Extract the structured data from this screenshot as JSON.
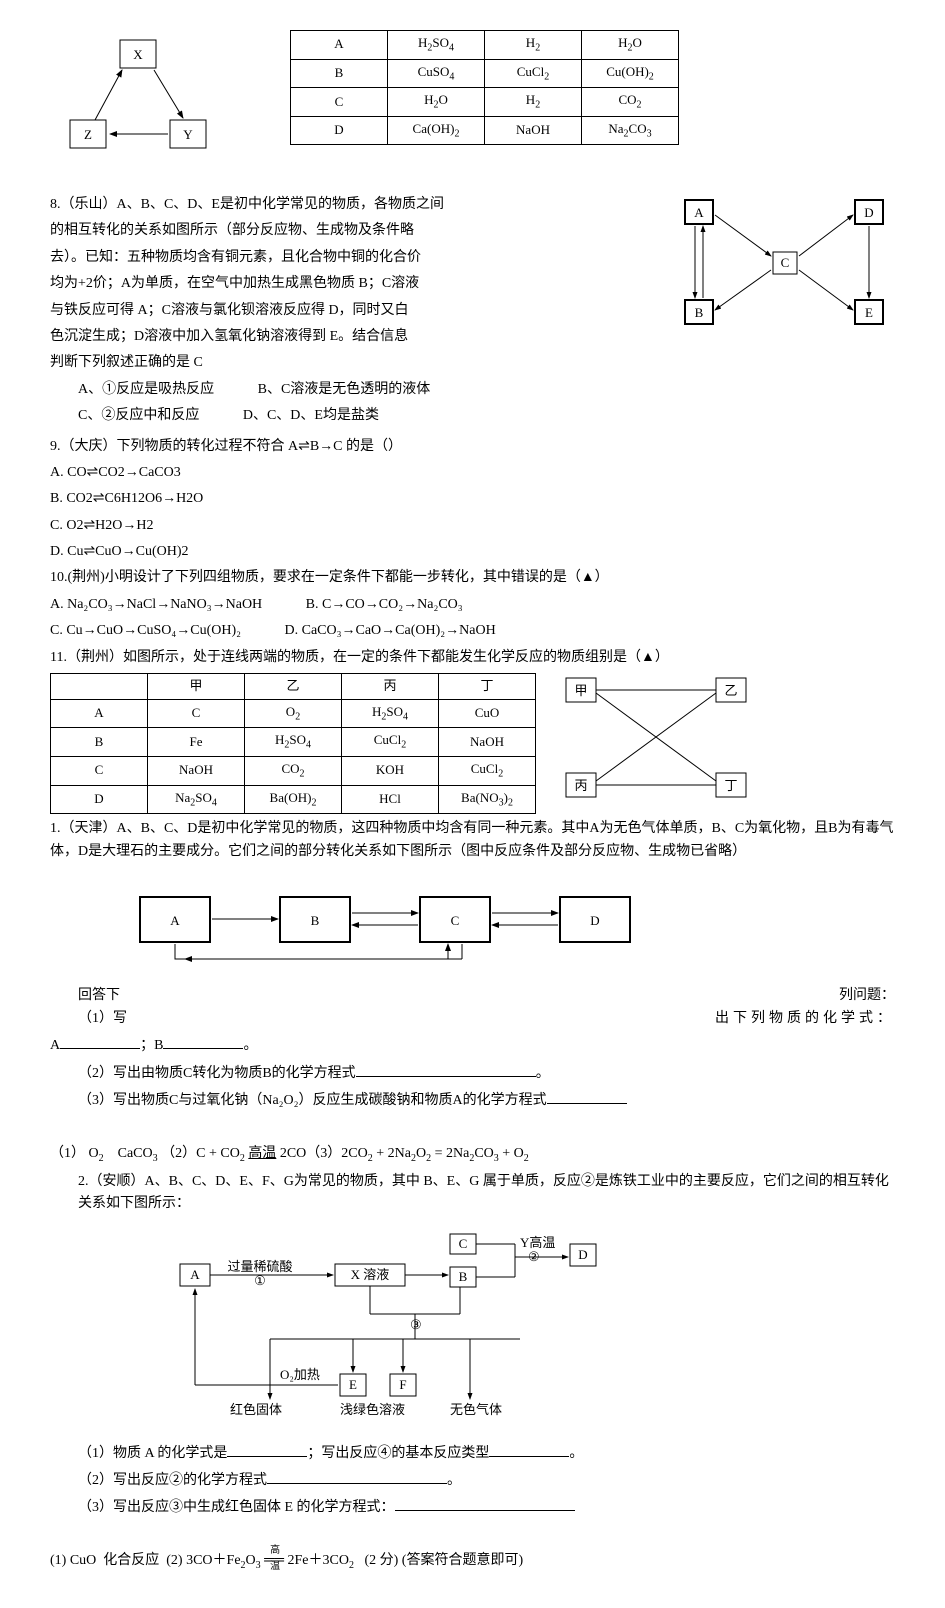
{
  "xyz": {
    "X": "X",
    "Y": "Y",
    "Z": "Z"
  },
  "table1": {
    "rows": [
      [
        "A",
        "H₂SO₄",
        "H₂",
        "H₂O"
      ],
      [
        "B",
        "CuSO₄",
        "CuCl₂",
        "Cu(OH)₂"
      ],
      [
        "C",
        "H₂O",
        "H₂",
        "CO₂"
      ],
      [
        "D",
        "Ca(OH)₂",
        "NaOH",
        "Na₂CO₃"
      ]
    ]
  },
  "q8": {
    "line1": "8.（乐山）A、B、C、D、E是初中化学常见的物质，各物质之间",
    "line2": "的相互转化的关系如图所示（部分反应物、生成物及条件略",
    "line3": "去）。已知：五种物质均含有铜元素，且化合物中铜的化合价",
    "line4": "均为+2价；A为单质，在空气中加热生成黑色物质 B；C溶液",
    "line5": "与铁反应可得 A；C溶液与氯化钡溶液反应得 D，同时又白",
    "line6": "色沉淀生成；D溶液中加入氢氧化钠溶液得到 E。结合信息",
    "line7": "判断下列叙述正确的是 C",
    "optA": "A、①反应是吸热反应",
    "optB": "B、C溶液是无色透明的液体",
    "optC": "C、②反应中和反应",
    "optD": "D、C、D、E均是盐类",
    "labels": {
      "A": "A",
      "B": "B",
      "C": "C",
      "D": "D",
      "E": "E"
    }
  },
  "q9": {
    "stem": "9.（大庆）下列物质的转化过程不符合 A⇌B→C 的是（）",
    "A": "A.  CO⇌CO2→CaCO3",
    "B": "B.  CO2⇌C6H12O6→H2O",
    "C": "C.  O2⇌H2O→H2",
    "D": "D.  Cu⇌CuO→Cu(OH)2"
  },
  "q10": {
    "stem": "10.(荆州)小明设计了下列四组物质，要求在一定条件下都能一步转化，其中错误的是（▲）",
    "A": "A.  Na₂CO₃→NaCl→NaNO₃→NaOH",
    "B": "B.  C→CO→CO₂→Na₂CO₃",
    "C": "C.  Cu→CuO→CuSO₄→Cu(OH)₂",
    "D": "D.  CaCO₃→CaO→Ca(OH)₂→NaOH"
  },
  "q11": {
    "stem": "11.（荆州）如图所示，处于连线两端的物质，在一定的条件下都能发生化学反应的物质组别是（▲）",
    "headers": [
      "",
      "甲",
      "乙",
      "丙",
      "丁"
    ],
    "rows": [
      [
        "A",
        "C",
        "O₂",
        "H₂SO₄",
        "CuO"
      ],
      [
        "B",
        "Fe",
        "H₂SO₄",
        "CuCl₂",
        "NaOH"
      ],
      [
        "C",
        "NaOH",
        "CO₂",
        "KOH",
        "CuCl₂"
      ],
      [
        "D",
        "Na₂SO₄",
        "Ba(OH)₂",
        "HCl",
        "Ba(NO₃)₂"
      ]
    ],
    "labels": {
      "甲": "甲",
      "乙": "乙",
      "丙": "丙",
      "丁": "丁"
    }
  },
  "q1b": {
    "stem": "1.（天津）A、B、C、D是初中化学常见的物质，这四种物质中均含有同一种元素。其中A为无色气体单质，B、C为氧化物，且B为有毒气体，D是大理石的主要成分。它们之间的部分转化关系如下图所示（图中反应条件及部分反应物、生成物已省略）",
    "sub1a": "回答下",
    "sub1b": "列问题：",
    "sub2a": "（1）写",
    "sub2b": "出下列物质的化学式：",
    "line_ab": "A_____________；B___________。",
    "sub3": "（2）写出由物质C转化为物质B的化学方程式",
    "sub4": "（3）写出物质C与过氧化钠（Na₂O₂）反应生成碳酸钠和物质A的化学方程式",
    "ans": "（1） O₂    CaCO₃ （2）C + CO₂ 高温 2CO（3）2CO₂ + 2Na₂O₂ = 2Na₂CO₃ + O₂",
    "labels": {
      "A": "A",
      "B": "B",
      "C": "C",
      "D": "D"
    }
  },
  "q2b": {
    "stem": "2.（安顺）A、B、C、D、E、F、G为常见的物质，其中 B、E、G 属于单质，反应②是炼铁工业中的主要反应，它们之间的相互转化关系如下图所示：",
    "sub1": "（1）物质 A 的化学式是",
    "sub1b": "；写出反应④的基本反应类型",
    "sub2": "（2）写出反应②的化学方程式",
    "sub3": "（3）写出反应③中生成红色固体 E 的化学方程式：",
    "ans": "(1) CuO  化合反应  (2) 3CO＋Fe₂O₃ ══ 2Fe＋3CO₂   (2 分) (答案符合题意即可)",
    "labels": {
      "A": "A",
      "B": "B",
      "C": "C",
      "D": "D",
      "E": "E",
      "F": "F",
      "liang": "过量稀硫酸",
      "x": "X 溶液",
      "y": "Y高温",
      "n1": "①",
      "n2": "②",
      "n3": "③",
      "o2": "O₂加热",
      "red": "红色固体",
      "green": "浅绿色溶液",
      "gas": "无色气体"
    }
  }
}
